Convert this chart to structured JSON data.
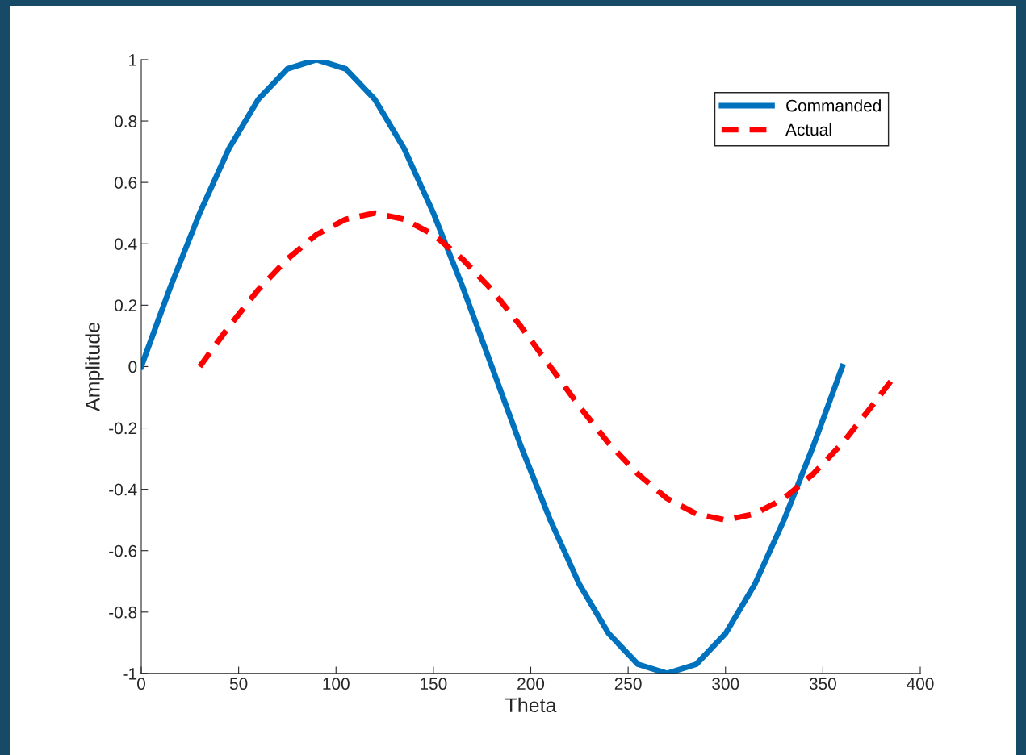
{
  "chart_data": {
    "type": "line",
    "xlabel": "Theta",
    "ylabel": "Amplitude",
    "xlim": [
      0,
      400
    ],
    "xticks": [
      0,
      50,
      100,
      150,
      200,
      250,
      300,
      350,
      400
    ],
    "ylim": [
      -1,
      1
    ],
    "yticks": [
      -1,
      -0.8,
      -0.6,
      -0.4,
      -0.2,
      0,
      0.2,
      0.4,
      0.6,
      0.8,
      1
    ],
    "grid": false,
    "legend": "top right",
    "series": [
      {
        "name": "Commanded",
        "color": "#0072bd",
        "line_style": "solid",
        "x": [
          0,
          15,
          30,
          45,
          60,
          75,
          90,
          105,
          120,
          135,
          150,
          165,
          180,
          195,
          210,
          225,
          240,
          255,
          270,
          285,
          300,
          315,
          330,
          345,
          360
        ],
        "values": [
          0,
          0.26,
          0.5,
          0.71,
          0.87,
          0.97,
          1,
          0.97,
          0.87,
          0.71,
          0.5,
          0.26,
          0,
          -0.26,
          -0.5,
          -0.71,
          -0.87,
          -0.97,
          -1,
          -0.97,
          -0.87,
          -0.71,
          -0.5,
          -0.26,
          0
        ]
      },
      {
        "name": "Actual",
        "color": "#ff0000",
        "line_style": "dashed",
        "x": [
          30,
          45,
          60,
          75,
          90,
          105,
          120,
          135,
          150,
          165,
          180,
          195,
          210,
          225,
          240,
          255,
          270,
          285,
          300,
          315,
          330,
          345,
          360,
          375,
          387
        ],
        "values": [
          0,
          0.13,
          0.25,
          0.35,
          0.43,
          0.48,
          0.5,
          0.48,
          0.43,
          0.35,
          0.25,
          0.13,
          0,
          -0.13,
          -0.25,
          -0.35,
          -0.43,
          -0.48,
          -0.5,
          -0.48,
          -0.43,
          -0.35,
          -0.25,
          -0.13,
          -0.03
        ]
      }
    ]
  }
}
